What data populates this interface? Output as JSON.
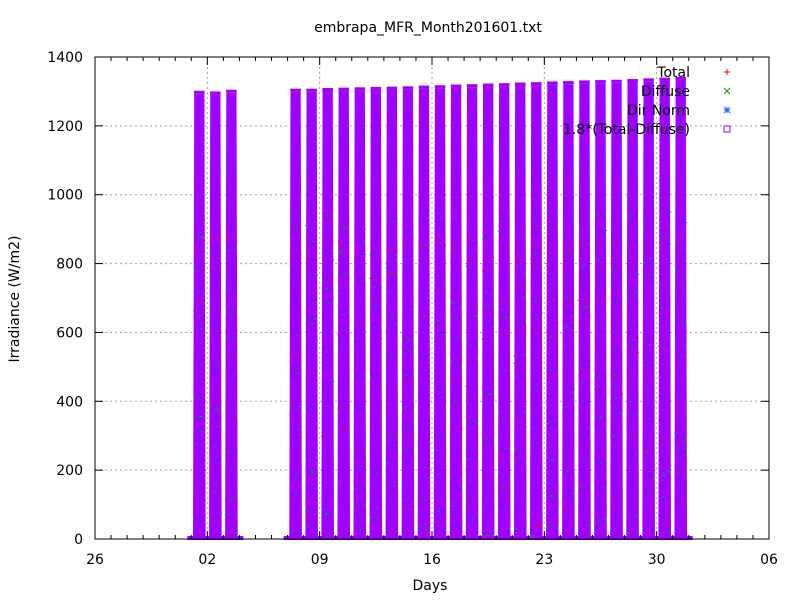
{
  "chart_data": {
    "type": "scatter",
    "title": "embrapa_MFR_Month201601.txt",
    "xlabel": "Days",
    "ylabel": "Irradiance (W/m2)",
    "xlim": [
      "2015-12-26",
      "2016-02-06"
    ],
    "ylim": [
      0,
      1400
    ],
    "x_tick_labels": [
      "26",
      "02",
      "09",
      "16",
      "23",
      "30",
      "06"
    ],
    "y_tick_labels": [
      "0",
      "200",
      "400",
      "600",
      "800",
      "1000",
      "1200",
      "1400"
    ],
    "grid": true,
    "legend_position": "top-right",
    "series": [
      {
        "name": "Total",
        "color": "#ff0000",
        "marker": "plus"
      },
      {
        "name": "Diffuse",
        "color": "#00a000",
        "marker": "x"
      },
      {
        "name": "Dir Norm",
        "color": "#1a66ff",
        "marker": "star"
      },
      {
        "name": "1.8*(Total-Diffuse)",
        "color": "#a000ff",
        "marker": "square"
      }
    ],
    "daily_peaks": [
      {
        "date": "2016-01-01",
        "value": 1302
      },
      {
        "date": "2016-01-02",
        "value": 1300
      },
      {
        "date": "2016-01-03",
        "value": 1305
      },
      {
        "date": "2016-01-07",
        "value": 1308
      },
      {
        "date": "2016-01-08",
        "value": 1308
      },
      {
        "date": "2016-01-09",
        "value": 1310
      },
      {
        "date": "2016-01-10",
        "value": 1311
      },
      {
        "date": "2016-01-11",
        "value": 1312
      },
      {
        "date": "2016-01-12",
        "value": 1313
      },
      {
        "date": "2016-01-13",
        "value": 1314
      },
      {
        "date": "2016-01-14",
        "value": 1315
      },
      {
        "date": "2016-01-15",
        "value": 1317
      },
      {
        "date": "2016-01-16",
        "value": 1318
      },
      {
        "date": "2016-01-17",
        "value": 1320
      },
      {
        "date": "2016-01-18",
        "value": 1321
      },
      {
        "date": "2016-01-19",
        "value": 1323
      },
      {
        "date": "2016-01-20",
        "value": 1324
      },
      {
        "date": "2016-01-21",
        "value": 1326
      },
      {
        "date": "2016-01-22",
        "value": 1327
      },
      {
        "date": "2016-01-23",
        "value": 1329
      },
      {
        "date": "2016-01-24",
        "value": 1330
      },
      {
        "date": "2016-01-25",
        "value": 1332
      },
      {
        "date": "2016-01-26",
        "value": 1333
      },
      {
        "date": "2016-01-27",
        "value": 1334
      },
      {
        "date": "2016-01-28",
        "value": 1336
      },
      {
        "date": "2016-01-29",
        "value": 1338
      },
      {
        "date": "2016-01-30",
        "value": 1340
      },
      {
        "date": "2016-01-31",
        "value": 1342
      }
    ]
  }
}
